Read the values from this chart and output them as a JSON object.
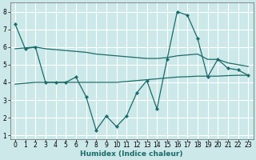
{
  "xlabel": "Humidex (Indice chaleur)",
  "bg_color": "#cce8e8",
  "grid_color": "#ffffff",
  "line_color": "#1a6b6b",
  "xlim": [
    -0.5,
    23.5
  ],
  "ylim": [
    0.8,
    8.5
  ],
  "yticks": [
    1,
    2,
    3,
    4,
    5,
    6,
    7,
    8
  ],
  "xticks": [
    0,
    1,
    2,
    3,
    4,
    5,
    6,
    7,
    8,
    9,
    10,
    11,
    12,
    13,
    14,
    15,
    16,
    17,
    18,
    19,
    20,
    21,
    22,
    23
  ],
  "line1_x": [
    0,
    1,
    2,
    3,
    4,
    5,
    6,
    7,
    8,
    9,
    10,
    11,
    12,
    13,
    14,
    15,
    16,
    17,
    18,
    19,
    20,
    21,
    22,
    23
  ],
  "line1_y": [
    7.3,
    5.9,
    6.0,
    4.0,
    4.0,
    4.0,
    4.3,
    3.2,
    1.3,
    2.1,
    1.5,
    2.1,
    3.4,
    4.1,
    2.5,
    5.3,
    8.0,
    7.8,
    6.5,
    4.3,
    5.3,
    4.8,
    4.7,
    4.4
  ],
  "line2_x": [
    0,
    1,
    2,
    3,
    4,
    5,
    6,
    7,
    8,
    9,
    10,
    11,
    12,
    13,
    14,
    15,
    16,
    17,
    18,
    19,
    20,
    21,
    22,
    23
  ],
  "line2_y": [
    5.9,
    5.95,
    6.0,
    5.9,
    5.85,
    5.8,
    5.75,
    5.7,
    5.6,
    5.55,
    5.5,
    5.45,
    5.4,
    5.35,
    5.35,
    5.4,
    5.5,
    5.55,
    5.6,
    5.3,
    5.3,
    5.1,
    5.0,
    4.9
  ],
  "line3_x": [
    0,
    1,
    2,
    3,
    4,
    5,
    6,
    7,
    8,
    9,
    10,
    11,
    12,
    13,
    14,
    15,
    16,
    17,
    18,
    19,
    20,
    21,
    22,
    23
  ],
  "line3_y": [
    3.9,
    3.95,
    4.0,
    4.0,
    4.0,
    4.0,
    4.0,
    4.0,
    4.0,
    4.0,
    4.0,
    4.05,
    4.1,
    4.15,
    4.2,
    4.25,
    4.3,
    4.32,
    4.35,
    4.35,
    4.35,
    4.38,
    4.4,
    4.4
  ],
  "tick_fontsize": 5.5,
  "xlabel_fontsize": 6.5,
  "marker": "D",
  "markersize": 2.2,
  "linewidth": 0.9
}
